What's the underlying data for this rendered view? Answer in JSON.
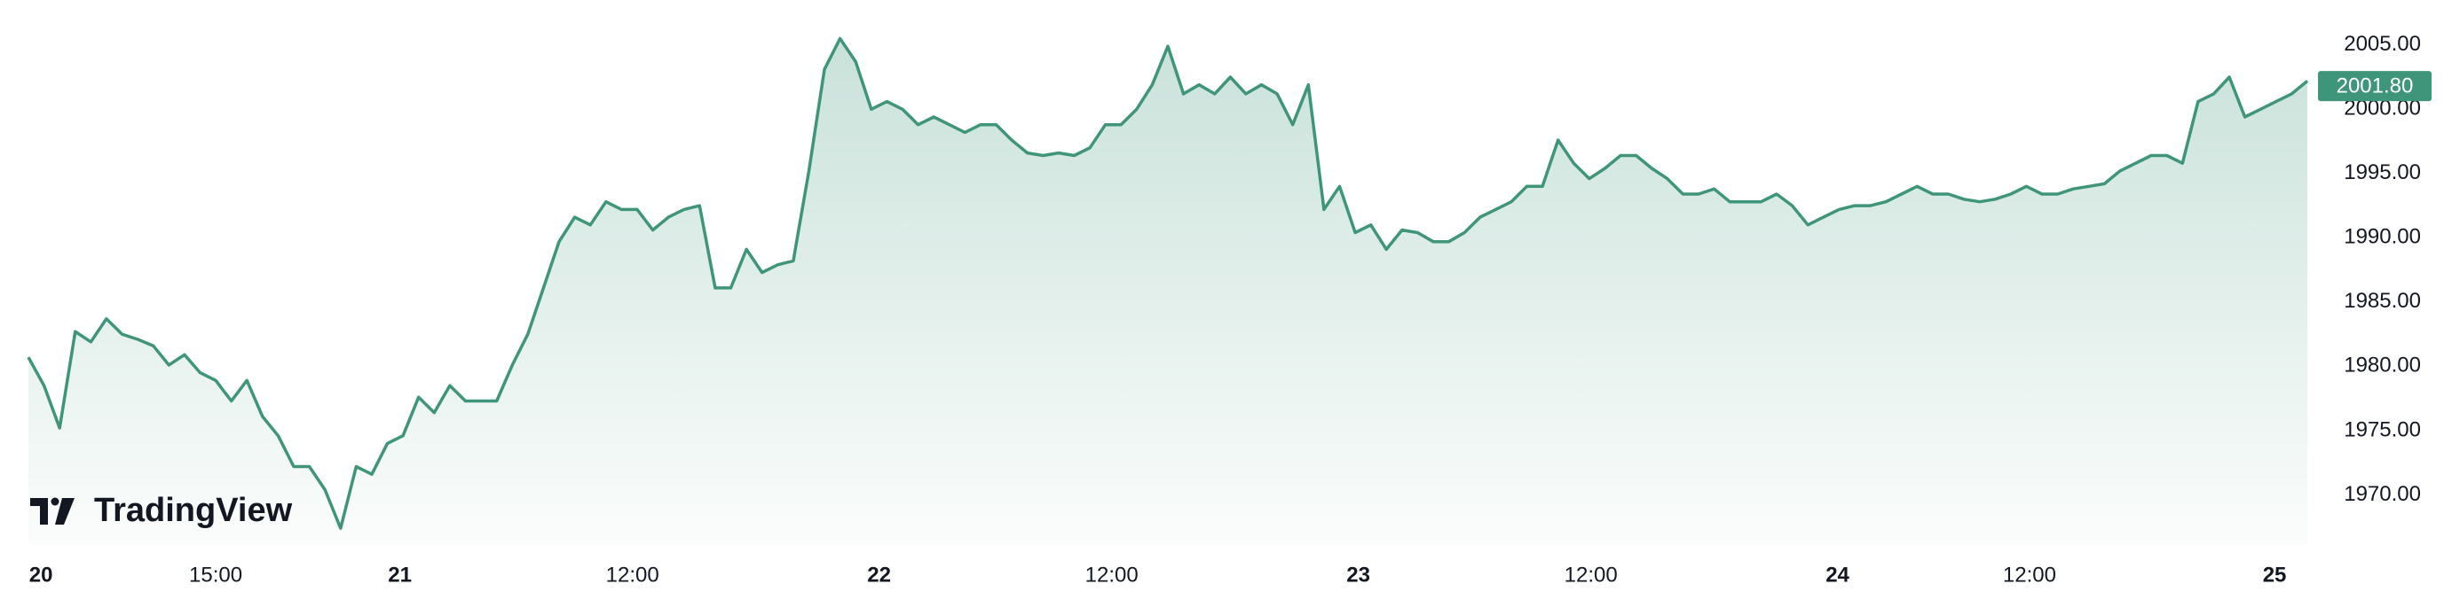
{
  "chart_data": {
    "type": "area",
    "series": [
      {
        "color": "#3f957a",
        "values": [
          1980.7,
          1978.5,
          1975.2,
          1982.7,
          1981.9,
          1983.7,
          1982.5,
          1982.1,
          1981.6,
          1980.1,
          1980.9,
          1979.5,
          1978.9,
          1977.3,
          1978.9,
          1976.1,
          1974.6,
          1972.2,
          1972.2,
          1970.4,
          1967.4,
          1972.2,
          1971.6,
          1974.0,
          1974.6,
          1977.6,
          1976.4,
          1978.5,
          1977.3,
          1977.3,
          1977.3,
          1980.1,
          1982.5,
          1986.1,
          1989.7,
          1991.6,
          1991.0,
          1992.8,
          1992.2,
          1992.2,
          1990.6,
          1991.6,
          1992.2,
          1992.5,
          1986.1,
          1986.1,
          1989.1,
          1987.3,
          1987.9,
          1988.2,
          1995.2,
          2003.1,
          2005.5,
          2003.7,
          2000.0,
          2000.6,
          2000.0,
          1998.8,
          1999.4,
          1998.8,
          1998.2,
          1998.8,
          1998.8,
          1997.6,
          1996.6,
          1996.4,
          1996.6,
          1996.4,
          1997.0,
          1998.8,
          1998.8,
          2000.0,
          2001.9,
          2004.9,
          2001.2,
          2001.9,
          2001.2,
          2002.5,
          2001.2,
          2001.9,
          2001.2,
          1998.8,
          2001.9,
          1992.2,
          1994.0,
          1990.4,
          1991.0,
          1989.1,
          1990.6,
          1990.4,
          1989.7,
          1989.7,
          1990.4,
          1991.6,
          1992.2,
          1992.8,
          1994.0,
          1994.0,
          1997.6,
          1995.8,
          1994.6,
          1995.4,
          1996.4,
          1996.4,
          1995.4,
          1994.6,
          1993.4,
          1993.4,
          1993.8,
          1992.8,
          1992.8,
          1992.8,
          1993.4,
          1992.5,
          1991.0,
          1991.6,
          1992.2,
          1992.5,
          1992.5,
          1992.8,
          1993.4,
          1994.0,
          1993.4,
          1993.4,
          1993.0,
          1992.8,
          1993.0,
          1993.4,
          1994.0,
          1993.4,
          1993.4,
          1993.8,
          1994.0,
          1994.2,
          1995.2,
          1995.8,
          1996.4,
          1996.4,
          1995.8,
          2000.6,
          2001.2,
          2002.5,
          1999.4,
          2000.0,
          2000.6,
          2001.2,
          2002.2
        ]
      }
    ],
    "xlim": [
      0,
      146
    ],
    "xticks": [
      {
        "value": 0.8,
        "label": "20"
      },
      {
        "value": 12,
        "label": "15:00"
      },
      {
        "value": 23.8,
        "label": "21"
      },
      {
        "value": 38.7,
        "label": "12:00"
      },
      {
        "value": 54.5,
        "label": "22"
      },
      {
        "value": 69.4,
        "label": "12:00"
      },
      {
        "value": 85.2,
        "label": "23"
      },
      {
        "value": 100.1,
        "label": "12:00"
      },
      {
        "value": 115.9,
        "label": "24"
      },
      {
        "value": 128.2,
        "label": "12:00"
      },
      {
        "value": 143.9,
        "label": "25"
      }
    ],
    "ylim": [
      1966.1,
      2008.5
    ],
    "yticks": [
      {
        "value": 1970,
        "label": "1970.00"
      },
      {
        "value": 1975,
        "label": "1975.00"
      },
      {
        "value": 1980,
        "label": "1980.00"
      },
      {
        "value": 1985,
        "label": "1985.00"
      },
      {
        "value": 1990,
        "label": "1990.00"
      },
      {
        "value": 1995,
        "label": "1995.00"
      },
      {
        "value": 2000,
        "label": "2000.00"
      },
      {
        "value": 2005,
        "label": "2005.00"
      }
    ],
    "last_price": {
      "value": 2001.8,
      "label": "2001.80"
    },
    "logo": "TradingView"
  }
}
